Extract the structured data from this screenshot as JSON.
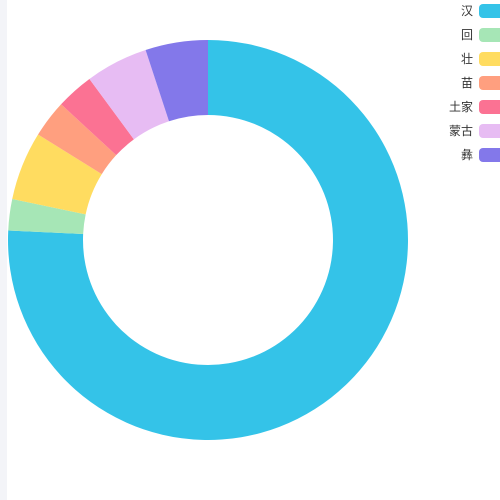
{
  "chart_data": {
    "type": "pie",
    "variant": "donut",
    "legend_position": "top-right",
    "categories": [
      "汉",
      "回",
      "壮",
      "苗",
      "土家",
      "蒙古",
      "彝"
    ],
    "values": [
      75,
      2.5,
      5.5,
      3,
      3,
      5,
      5
    ],
    "colors": [
      "#34c3e8",
      "#a6e6b6",
      "#ffdc60",
      "#ff9f7f",
      "#fb7293",
      "#e7bcf3",
      "#8378ea"
    ]
  }
}
